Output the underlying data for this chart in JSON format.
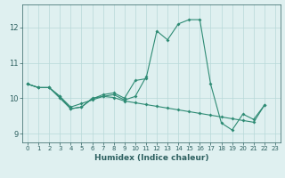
{
  "xlabel": "Humidex (Indice chaleur)",
  "x": [
    0,
    1,
    2,
    3,
    4,
    5,
    6,
    7,
    8,
    9,
    10,
    11,
    12,
    13,
    14,
    15,
    16,
    17,
    18,
    19,
    20,
    21,
    22,
    23
  ],
  "series1_x": [
    0,
    1,
    2,
    3,
    4,
    5,
    6,
    7,
    8,
    9,
    10,
    11
  ],
  "series1_y": [
    10.4,
    10.3,
    10.3,
    10.0,
    9.7,
    9.75,
    10.0,
    10.05,
    10.1,
    9.95,
    10.05,
    10.6
  ],
  "series2_x": [
    0,
    1,
    2,
    3,
    4,
    5,
    6,
    7,
    8,
    9,
    10,
    11,
    12,
    13,
    14,
    15,
    16,
    17,
    18,
    19,
    20,
    21,
    22
  ],
  "series2_y": [
    10.4,
    10.3,
    10.3,
    10.05,
    9.7,
    9.75,
    9.98,
    10.1,
    10.15,
    10.0,
    10.5,
    10.55,
    11.9,
    11.65,
    12.1,
    12.22,
    12.22,
    10.4,
    9.3,
    9.1,
    9.55,
    9.4,
    9.8
  ],
  "series3_x": [
    0,
    1,
    2,
    3,
    4,
    5,
    6,
    7,
    8,
    9,
    10,
    11,
    12,
    13,
    14,
    15,
    16,
    17,
    18,
    19,
    20,
    21,
    22
  ],
  "series3_y": [
    10.4,
    10.3,
    10.3,
    10.05,
    9.75,
    9.85,
    9.95,
    10.05,
    10.02,
    9.92,
    9.87,
    9.82,
    9.77,
    9.72,
    9.67,
    9.62,
    9.57,
    9.52,
    9.47,
    9.42,
    9.37,
    9.32,
    9.8
  ],
  "line_color": "#2E8B74",
  "bg_color": "#dff0f0",
  "grid_color": "#b8d8d8",
  "ylim": [
    8.75,
    12.65
  ],
  "xlim": [
    -0.5,
    23.5
  ],
  "yticks": [
    9,
    10,
    11,
    12
  ],
  "xticks": [
    0,
    1,
    2,
    3,
    4,
    5,
    6,
    7,
    8,
    9,
    10,
    11,
    12,
    13,
    14,
    15,
    16,
    17,
    18,
    19,
    20,
    21,
    22,
    23
  ]
}
